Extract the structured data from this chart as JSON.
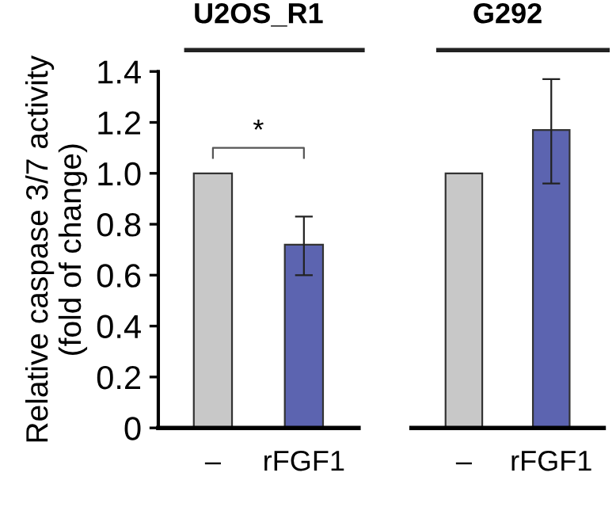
{
  "chart_data": [
    {
      "type": "bar",
      "title": "U2OS_R1",
      "ylabel": "Relative caspase 3/7 activity\n(fold of change)",
      "categories": [
        "–",
        "rFGF1"
      ],
      "values": [
        1.0,
        0.72
      ],
      "colors": [
        "#c8c8c8",
        "#5c64b0"
      ],
      "errors": [
        null,
        [
          0.6,
          0.83
        ]
      ],
      "ylim": [
        0,
        1.4
      ],
      "yticks": [
        {
          "value": 0,
          "label": "0"
        },
        0.2,
        0.4,
        0.6,
        0.8,
        {
          "value": 1.0,
          "label": "1.0"
        },
        1.2,
        1.4
      ],
      "annotations": [
        "*"
      ],
      "grid": false,
      "legend": false
    },
    {
      "type": "bar",
      "title": "G292",
      "categories": [
        "–",
        "rFGF1"
      ],
      "values": [
        1.0,
        1.17
      ],
      "colors": [
        "#c8c8c8",
        "#5c64b0"
      ],
      "errors": [
        null,
        [
          0.96,
          1.37
        ]
      ],
      "ylim": [
        0,
        1.4
      ],
      "tick_labels": "x",
      "grid": false,
      "legend": false
    }
  ]
}
